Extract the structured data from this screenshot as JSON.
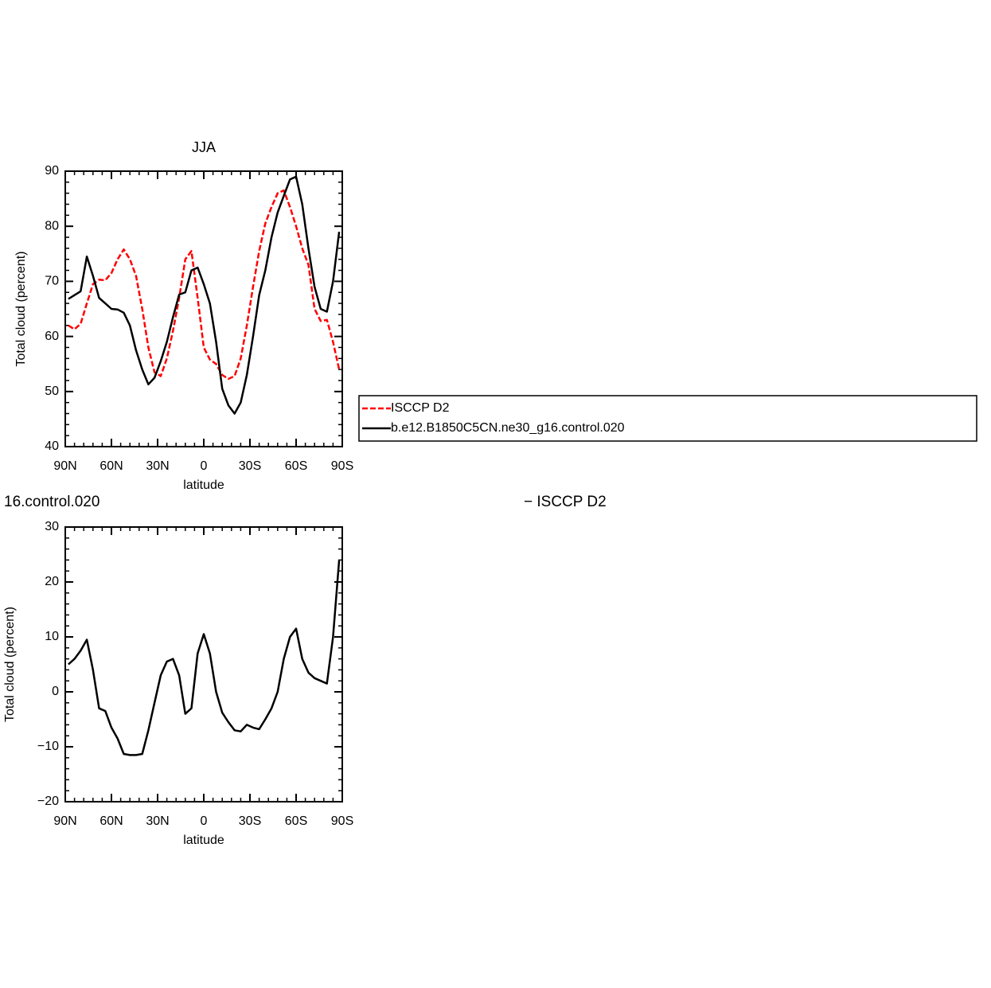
{
  "chart_data": [
    {
      "type": "line",
      "title": "JJA",
      "ylabel": "Total cloud (percent)",
      "xlabel": "latitude",
      "x": [
        88,
        84,
        80,
        76,
        72,
        68,
        64,
        60,
        56,
        52,
        48,
        44,
        40,
        36,
        32,
        28,
        24,
        20,
        16,
        12,
        8,
        4,
        0,
        -4,
        -8,
        -12,
        -16,
        -20,
        -24,
        -28,
        -32,
        -36,
        -40,
        -44,
        -48,
        -52,
        -56,
        -60,
        -64,
        -68,
        -72,
        -76,
        -80,
        -84,
        -88
      ],
      "xlim": [
        90,
        -90
      ],
      "xticks": [
        {
          "value": 90,
          "label": "90N"
        },
        {
          "value": 60,
          "label": "60N"
        },
        {
          "value": 30,
          "label": "30N"
        },
        0,
        {
          "value": -30,
          "label": "30S"
        },
        {
          "value": -60,
          "label": "60S"
        },
        {
          "value": -90,
          "label": "90S"
        }
      ],
      "ylim": [
        40,
        90
      ],
      "yticks": [
        40,
        50,
        60,
        70,
        80,
        90
      ],
      "legend": "outside-right",
      "series": [
        {
          "name": "ISCCP D2",
          "color": "#ff0000",
          "dash": true,
          "values": [
            62,
            61.3,
            62.3,
            66,
            69.5,
            70.3,
            70.2,
            71.5,
            74,
            75.8,
            74,
            71,
            65,
            58,
            53.5,
            52.8,
            56,
            61,
            67,
            74,
            75.5,
            67,
            58,
            55.8,
            55,
            53,
            52.3,
            52.8,
            56,
            62,
            69,
            75.5,
            80.5,
            83.5,
            86,
            86.5,
            83.5,
            80,
            76,
            73,
            65,
            62.8,
            63,
            59,
            54
          ]
        },
        {
          "name": "b.e12.B1850C5CN.ne30_g16.control.020",
          "color": "#000000",
          "dash": false,
          "values": [
            66.8,
            67.5,
            68.2,
            74.5,
            71,
            67,
            66,
            65,
            64.9,
            64.3,
            62,
            57.5,
            54,
            51.3,
            52.5,
            55.5,
            59,
            63.5,
            67.6,
            68,
            72,
            72.5,
            69.5,
            66,
            59,
            50.5,
            47.5,
            46,
            48,
            53,
            60,
            67.5,
            72,
            78,
            82.5,
            85.5,
            88.5,
            89,
            84,
            76,
            69,
            65,
            64.5,
            70,
            79
          ]
        }
      ]
    },
    {
      "type": "line",
      "title": [
        "16.control.020",
        "− ISCCP D2"
      ],
      "ylabel": "Total cloud (percent)",
      "xlabel": "latitude",
      "x": [
        88,
        84,
        80,
        76,
        72,
        68,
        64,
        60,
        56,
        52,
        48,
        44,
        40,
        36,
        32,
        28,
        24,
        20,
        16,
        12,
        8,
        4,
        0,
        -4,
        -8,
        -12,
        -16,
        -20,
        -24,
        -28,
        -32,
        -36,
        -40,
        -44,
        -48,
        -52,
        -56,
        -60,
        -64,
        -68,
        -72,
        -76,
        -80,
        -84,
        -88
      ],
      "xlim": [
        90,
        -90
      ],
      "xticks": [
        {
          "value": 90,
          "label": "90N"
        },
        {
          "value": 60,
          "label": "60N"
        },
        {
          "value": 30,
          "label": "30N"
        },
        0,
        {
          "value": -30,
          "label": "30S"
        },
        {
          "value": -60,
          "label": "60S"
        },
        {
          "value": -90,
          "label": "90S"
        }
      ],
      "ylim": [
        -20,
        30
      ],
      "yticks": [
        {
          "value": -20,
          "label": "−20"
        },
        {
          "value": -10,
          "label": "−10"
        },
        0,
        10,
        20,
        30
      ],
      "series": [
        {
          "color": "#000000",
          "dash": false,
          "values": [
            5,
            6,
            7.5,
            9.5,
            4,
            -3,
            -3.5,
            -6.5,
            -8.5,
            -11.3,
            -11.5,
            -11.5,
            -11.3,
            -7,
            -2,
            3,
            5.5,
            6,
            3,
            -4,
            -3,
            7,
            10.5,
            7,
            0,
            -3.8,
            -5.5,
            -7,
            -7.2,
            -6,
            -6.5,
            -6.8,
            -5,
            -3,
            0,
            6,
            10,
            11.5,
            6,
            3.5,
            2.5,
            2,
            1.5,
            10,
            24
          ]
        }
      ]
    }
  ]
}
